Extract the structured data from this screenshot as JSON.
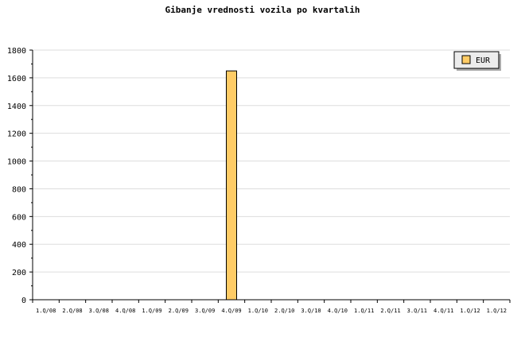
{
  "chart_data": {
    "type": "bar",
    "title": "Gibanje vrednosti vozila po kvartalih",
    "xlabel": "",
    "ylabel": "",
    "categories": [
      "1.Q/08",
      "2.Q/08",
      "3.Q/08",
      "4.Q/08",
      "1.Q/09",
      "2.Q/09",
      "3.Q/09",
      "4.Q/09",
      "1.Q/10",
      "2.Q/10",
      "3.Q/10",
      "4.Q/10",
      "1.Q/11",
      "2.Q/11",
      "3.Q/11",
      "4.Q/11",
      "1.Q/12",
      "1.Q/12"
    ],
    "series": [
      {
        "name": "EUR",
        "values": [
          0,
          0,
          0,
          0,
          0,
          0,
          0,
          1650,
          0,
          0,
          0,
          0,
          0,
          0,
          0,
          0,
          0,
          0
        ],
        "color": "#ffcc66"
      }
    ],
    "ylim": [
      0,
      1800
    ],
    "yticks": [
      0,
      200,
      400,
      600,
      800,
      1000,
      1200,
      1400,
      1600,
      1800
    ],
    "grid": true,
    "legend": "top-right"
  }
}
